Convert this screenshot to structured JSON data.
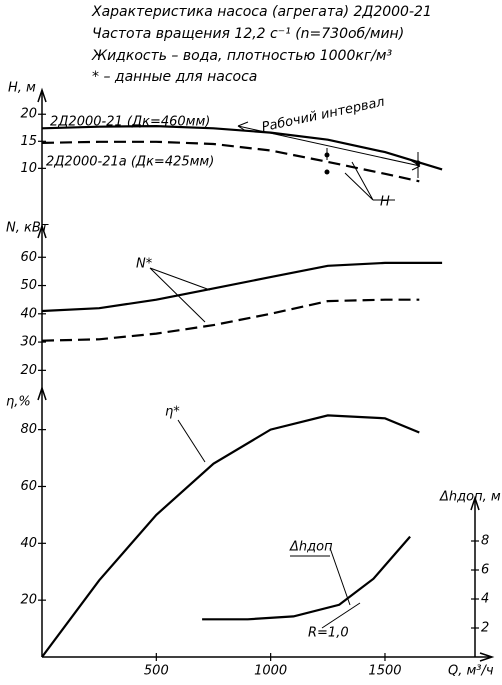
{
  "title_lines": [
    "Характеристика насоса (агрегата) 2Д2000-21",
    "Частота вращения 12,2 с⁻¹ (n=730об/мин)",
    "Жидкость – вода, плотностью 1000кг/м³",
    "* – данные для насоса"
  ],
  "chart_data": [
    {
      "type": "line",
      "ylabel": "H, м",
      "ylim": [
        6,
        23
      ],
      "yticks": [
        10,
        15,
        20
      ],
      "xlim": [
        0,
        1850
      ],
      "series": [
        {
          "name": "2Д2000-21 (Дк=460мм)",
          "style": "solid",
          "x": [
            0,
            250,
            500,
            750,
            1000,
            1250,
            1500,
            1750
          ],
          "values": [
            17.4,
            17.7,
            17.8,
            17.4,
            16.6,
            15.3,
            13.0,
            9.8
          ]
        },
        {
          "name": "2Д2000-21а (Дк=425мм)",
          "style": "dashed",
          "x": [
            0,
            250,
            500,
            750,
            1000,
            1250,
            1500,
            1650
          ],
          "values": [
            14.7,
            14.9,
            14.9,
            14.5,
            13.3,
            11.2,
            9.0,
            7.6
          ]
        }
      ],
      "annotations": [
        "Рабочий интервал",
        "Н"
      ]
    },
    {
      "type": "line",
      "ylabel": "N, кВт",
      "ylim": [
        18,
        70
      ],
      "yticks": [
        20,
        30,
        40,
        50,
        60
      ],
      "xlim": [
        0,
        1850
      ],
      "series": [
        {
          "style": "solid",
          "x": [
            0,
            250,
            500,
            750,
            1000,
            1250,
            1500,
            1750
          ],
          "values": [
            41,
            42,
            45,
            49,
            53,
            57,
            58,
            58
          ]
        },
        {
          "style": "dashed",
          "x": [
            0,
            250,
            500,
            750,
            1000,
            1250,
            1500,
            1650
          ],
          "values": [
            30.5,
            31,
            33,
            36,
            40,
            44.5,
            45,
            45
          ]
        }
      ],
      "annotations": [
        "N*"
      ]
    },
    {
      "type": "line",
      "ylabel": "η,%",
      "ylim": [
        0,
        95
      ],
      "yticks": [
        20,
        40,
        60,
        80
      ],
      "xlim": [
        0,
        1850
      ],
      "xticks": [
        500,
        1000,
        1500
      ],
      "xlabel": "Q, м³/ч",
      "series": [
        {
          "style": "solid",
          "x": [
            0,
            250,
            500,
            750,
            1000,
            1250,
            1500,
            1650
          ],
          "values": [
            0,
            27,
            50,
            68,
            80,
            85,
            84,
            79
          ]
        }
      ],
      "annotations": [
        "η*"
      ]
    },
    {
      "type": "line",
      "ylabel": "Δhдоп, м",
      "axis_side": "right",
      "ylim": [
        0,
        10
      ],
      "yticks": [
        2,
        4,
        6,
        8
      ],
      "xlim": [
        0,
        1850
      ],
      "series": [
        {
          "name": "Δhдоп",
          "style": "solid",
          "x": [
            700,
            900,
            1100,
            1300,
            1450,
            1610
          ],
          "values": [
            2.6,
            2.6,
            2.8,
            3.6,
            5.4,
            8.3
          ]
        }
      ],
      "annotations": [
        "R=1,0"
      ]
    }
  ]
}
